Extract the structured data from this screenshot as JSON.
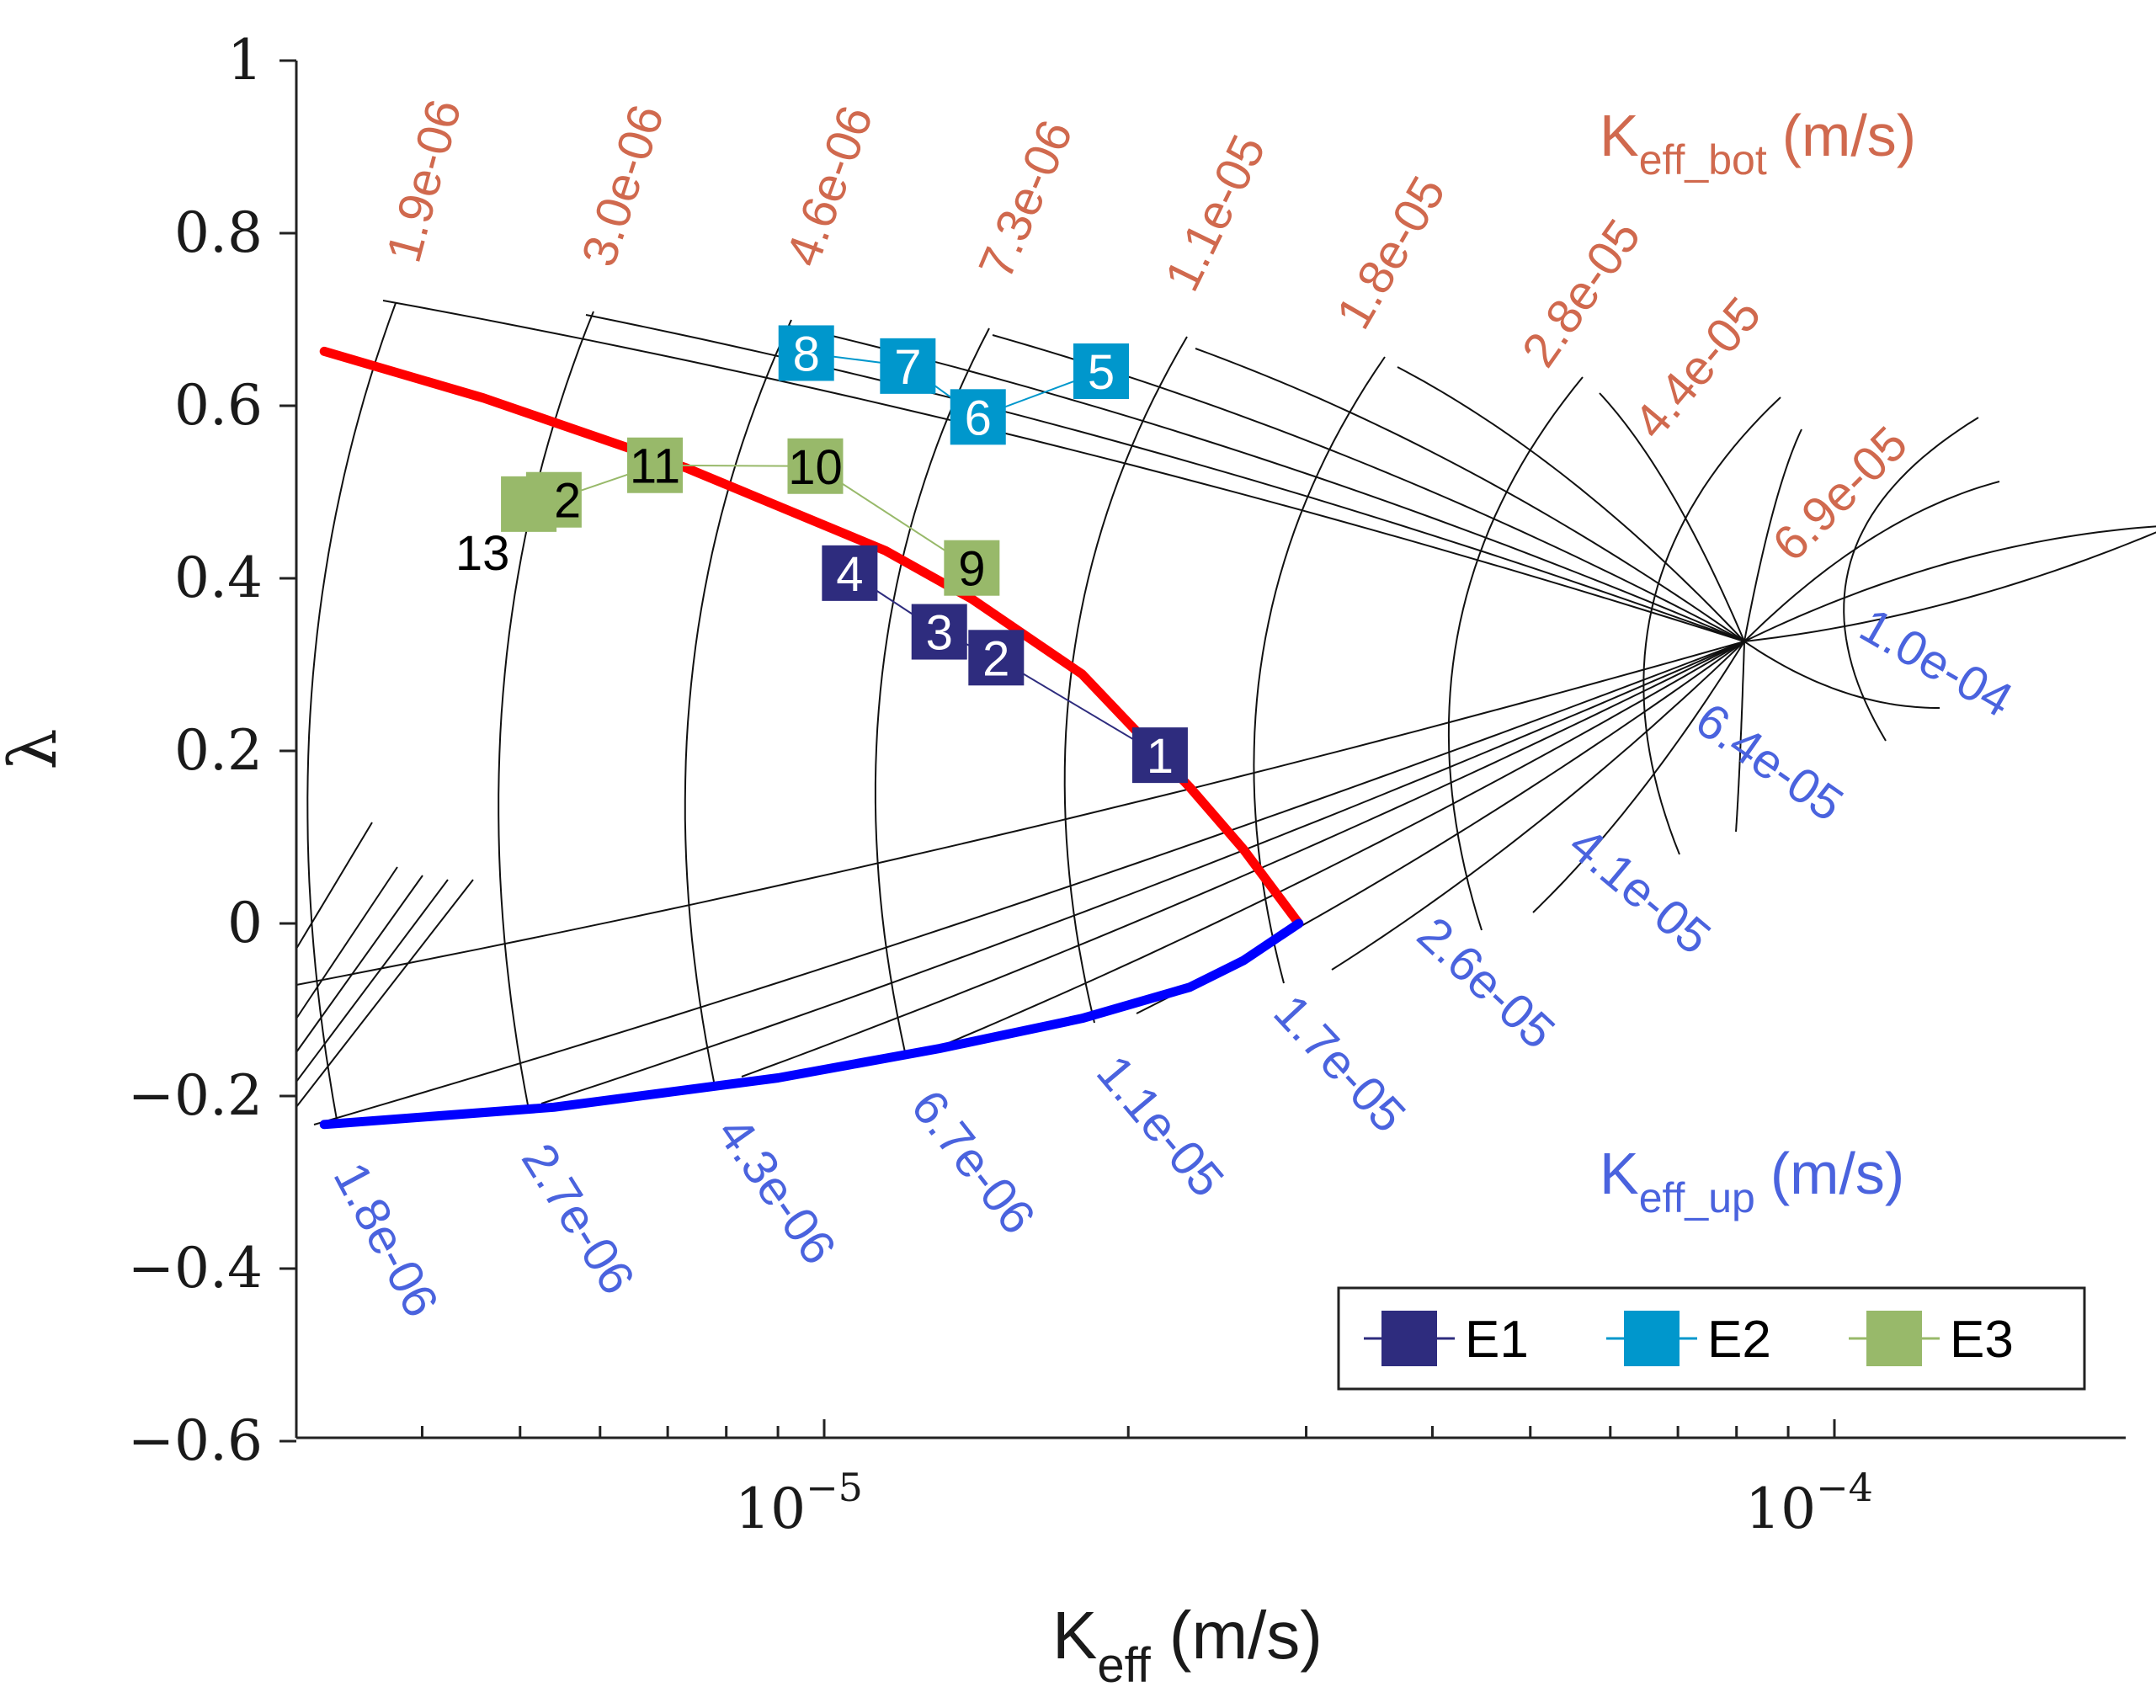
{
  "chart_data": {
    "type": "scatter",
    "title": "",
    "xlabel": {
      "base": "K",
      "sub": "eff",
      "unit": "(m/s)"
    },
    "ylabel": "λ",
    "xscale": "log",
    "xlim": [
      3.2e-06,
      0.00018
    ],
    "ylim": [
      -0.6,
      1.0
    ],
    "yticks": [
      {
        "v": 1.0,
        "label": "1"
      },
      {
        "v": 0.8,
        "label": "0.8"
      },
      {
        "v": 0.6,
        "label": "0.6"
      },
      {
        "v": 0.4,
        "label": "0.4"
      },
      {
        "v": 0.2,
        "label": "0.2"
      },
      {
        "v": 0.0,
        "label": "0"
      },
      {
        "v": -0.2,
        "label": "−0.2"
      },
      {
        "v": -0.4,
        "label": "−0.4"
      },
      {
        "v": -0.6,
        "label": "−0.6"
      }
    ],
    "xticks": [
      {
        "v": 1e-05,
        "base": "10",
        "exp": "−5"
      },
      {
        "v": 0.0001,
        "base": "10",
        "exp": "−4"
      }
    ],
    "grid": false,
    "keff_bot": {
      "title_base": "K",
      "title_sub": "eff_bot",
      "title_unit": "(m/s)",
      "color": "#d0694e",
      "values": [
        1.9e-06,
        3e-06,
        4.6e-06,
        7.3e-06,
        1.1e-05,
        1.8e-05,
        2.8e-05,
        4.4e-05,
        6.9e-05
      ],
      "labels": [
        "1.9e-06",
        "3.0e-06",
        "4.6e-06",
        "7.3e-06",
        "1.1e-05",
        "1.8e-05",
        "2.8e-05",
        "4.4e-05",
        "6.9e-05"
      ]
    },
    "keff_up": {
      "title_base": "K",
      "title_sub": "eff_up",
      "title_unit": "(m/s)",
      "color": "#4a63de",
      "values": [
        1.8e-06,
        2.7e-06,
        4.3e-06,
        6.7e-06,
        1.1e-05,
        1.7e-05,
        2.6e-05,
        4.1e-05,
        6.4e-05,
        0.0001
      ],
      "labels": [
        "1.8e-06",
        "2.7e-06",
        "4.3e-06",
        "6.7e-06",
        "1.1e-05",
        "1.7e-05",
        "2.6e-05",
        "4.1e-05",
        "6.4e-05",
        "1.0e-04"
      ]
    },
    "boundary_curves": [
      {
        "name": "red-curve",
        "color": "#ff0000",
        "points": [
          [
            3.2e-06,
            0.663
          ],
          [
            4.6e-06,
            0.609
          ],
          [
            7.3e-06,
            0.528
          ],
          [
            1.15e-05,
            0.432
          ],
          [
            1.4e-05,
            0.376
          ],
          [
            1.8e-05,
            0.289
          ],
          [
            2.3e-05,
            0.158
          ],
          [
            2.6e-05,
            0.086
          ],
          [
            2.95e-05,
            0.0
          ]
        ]
      },
      {
        "name": "blue-curve",
        "color": "#0000ff",
        "points": [
          [
            3.2e-06,
            -0.233
          ],
          [
            5.4e-06,
            -0.213
          ],
          [
            9e-06,
            -0.179
          ],
          [
            1.3e-05,
            -0.145
          ],
          [
            1.8e-05,
            -0.11
          ],
          [
            2.3e-05,
            -0.074
          ],
          [
            2.6e-05,
            -0.043
          ],
          [
            2.95e-05,
            0.0
          ]
        ]
      }
    ],
    "series": [
      {
        "name": "E1",
        "color": "#2e2c7e",
        "points": [
          {
            "id": "1",
            "x": 2.15e-05,
            "y": 0.195
          },
          {
            "id": "2",
            "x": 1.48e-05,
            "y": 0.308
          },
          {
            "id": "3",
            "x": 1.3e-05,
            "y": 0.338
          },
          {
            "id": "4",
            "x": 1.06e-05,
            "y": 0.406
          }
        ]
      },
      {
        "name": "E2",
        "color": "#0097cc",
        "points": [
          {
            "id": "5",
            "x": 1.88e-05,
            "y": 0.64
          },
          {
            "id": "6",
            "x": 1.42e-05,
            "y": 0.587
          },
          {
            "id": "7",
            "x": 1.21e-05,
            "y": 0.646
          },
          {
            "id": "8",
            "x": 9.6e-06,
            "y": 0.661
          }
        ]
      },
      {
        "name": "E3",
        "color": "#98b96a",
        "points": [
          {
            "id": "9",
            "x": 1.4e-05,
            "y": 0.412
          },
          {
            "id": "10",
            "x": 9.8e-06,
            "y": 0.53
          },
          {
            "id": "11",
            "x": 6.8e-06,
            "y": 0.531
          },
          {
            "id": "12",
            "x": 5.4e-06,
            "y": 0.491
          },
          {
            "id": "13",
            "x": 5.1e-06,
            "y": 0.486
          }
        ]
      }
    ],
    "legend": {
      "placement": "bottom-right",
      "entries": [
        "E1",
        "E2",
        "E3"
      ]
    }
  }
}
